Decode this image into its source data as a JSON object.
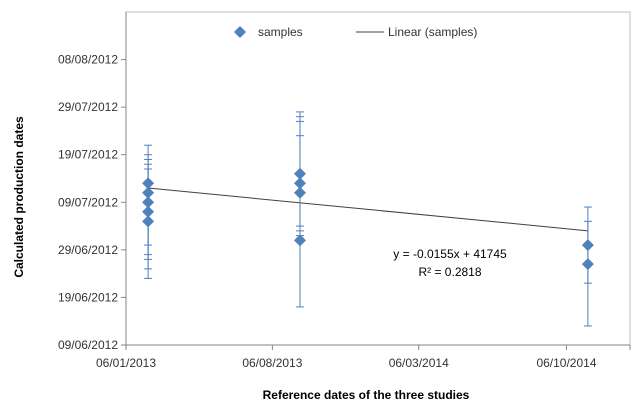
{
  "chart_data": {
    "type": "scatter",
    "xlabel": "Reference dates of the three studies",
    "ylabel": "Calculated production dates",
    "x_ticks": [
      "06/01/2013",
      "06/08/2013",
      "06/03/2014",
      "06/10/2014"
    ],
    "y_ticks": [
      "09/06/2012",
      "19/06/2012",
      "29/06/2012",
      "09/07/2012",
      "19/07/2012",
      "29/07/2012",
      "08/08/2012"
    ],
    "xlim": [
      "06/01/2013",
      "06/01/2015"
    ],
    "ylim": [
      "09/06/2012",
      "18/08/2012"
    ],
    "grid": false,
    "legend": {
      "placement": "top",
      "entries": [
        {
          "label": "samples",
          "marker": "diamond"
        },
        {
          "label": "Linear (samples)",
          "marker": "line"
        }
      ]
    },
    "series": [
      {
        "name": "samples",
        "color": "#4f81bd",
        "points": [
          {
            "x": "07/02/2013",
            "y": "11/07/2012",
            "err_low": "27/06/2012",
            "err_high": "19/07/2012"
          },
          {
            "x": "07/02/2013",
            "y": "09/07/2012",
            "err_low": "25/06/2012",
            "err_high": "17/07/2012"
          },
          {
            "x": "07/02/2013",
            "y": "07/07/2012",
            "err_low": "30/06/2012",
            "err_high": "16/07/2012"
          },
          {
            "x": "07/02/2013",
            "y": "05/07/2012",
            "err_low": "23/06/2012",
            "err_high": "21/07/2012"
          },
          {
            "x": "07/02/2013",
            "y": "13/07/2012",
            "err_low": "28/06/2012",
            "err_high": "18/07/2012"
          },
          {
            "x": "15/09/2013",
            "y": "15/07/2012",
            "err_low": "02/07/2012",
            "err_high": "27/07/2012"
          },
          {
            "x": "15/09/2013",
            "y": "13/07/2012",
            "err_low": "03/07/2012",
            "err_high": "26/07/2012"
          },
          {
            "x": "15/09/2013",
            "y": "11/07/2012",
            "err_low": "04/07/2012",
            "err_high": "23/07/2012"
          },
          {
            "x": "15/09/2013",
            "y": "01/07/2012",
            "err_low": "17/06/2012",
            "err_high": "28/07/2012"
          },
          {
            "x": "06/11/2014",
            "y": "30/06/2012",
            "err_low": "22/06/2012",
            "err_high": "08/07/2012"
          },
          {
            "x": "06/11/2014",
            "y": "26/06/2012",
            "err_low": "13/06/2012",
            "err_high": "05/07/2012"
          }
        ]
      },
      {
        "name": "Linear (samples)",
        "type": "line",
        "color": "#404040",
        "x": [
          "07/02/2013",
          "06/11/2014"
        ],
        "y": [
          "12/07/2012",
          "03/07/2012"
        ]
      }
    ],
    "annotations": {
      "equation": "y = -0.0155x + 41745",
      "r2": "R² = 0.2818"
    }
  }
}
